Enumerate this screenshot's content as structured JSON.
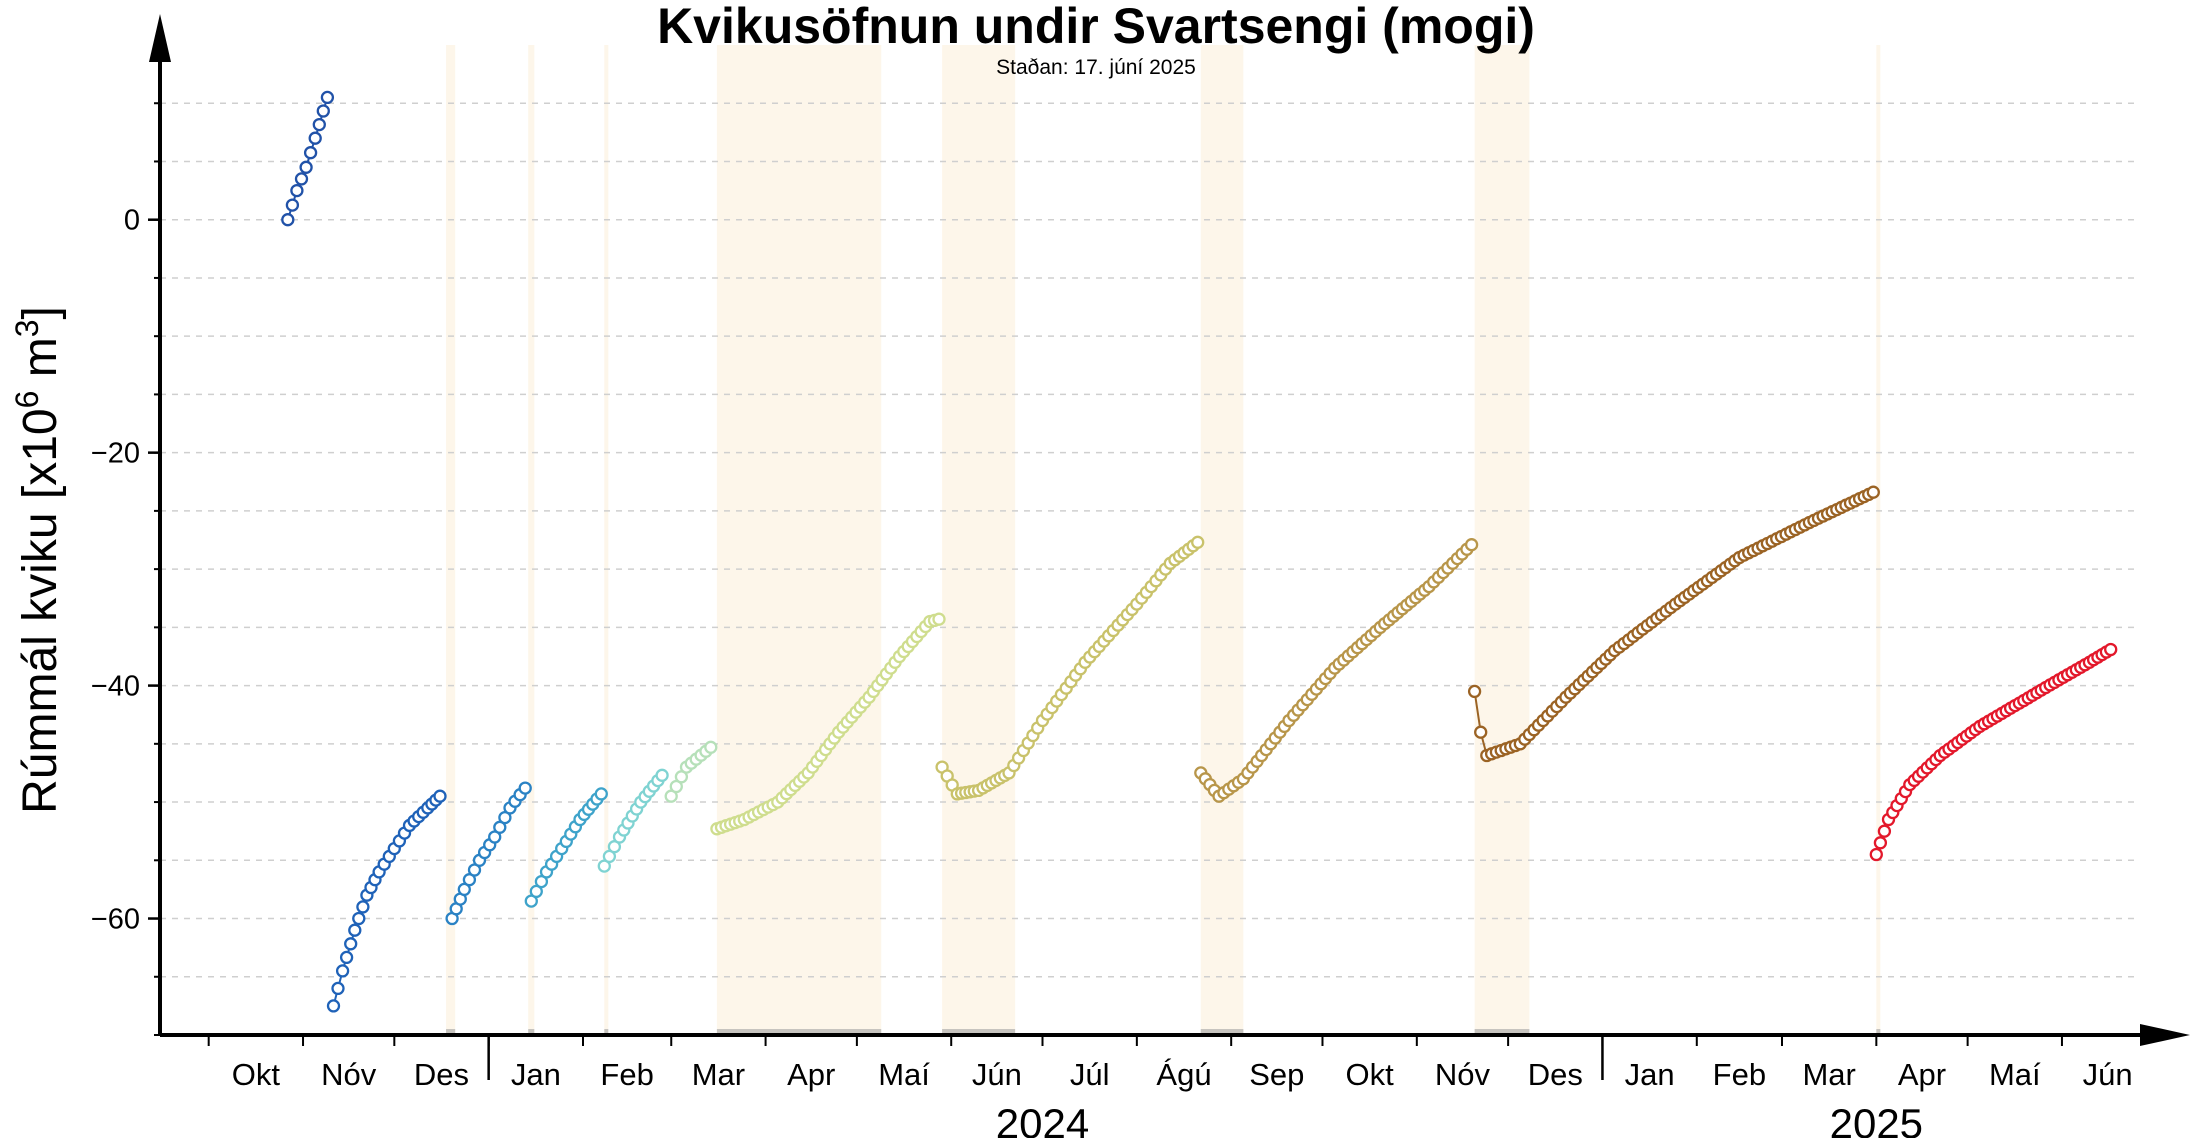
{
  "chart_data": {
    "type": "scatter",
    "title": "Kvikusöfnun undir Svartsengi (mogi)",
    "subtitle": "Staðan: 17. júní 2025",
    "ylabel": {
      "main": "Rúmmál kviku [x10",
      "exp1": "6",
      "mid": " m",
      "exp2": "3",
      "end": "]"
    },
    "ylim": [
      -70,
      15
    ],
    "yticks": [
      0,
      -20,
      -40,
      -60
    ],
    "ytick_labels": [
      "0",
      "−20",
      "−40",
      "−60"
    ],
    "xlim": [
      "2023-09-15",
      "2025-06-25"
    ],
    "month_labels": [
      {
        "label": "Okt",
        "date": "2023-10-01"
      },
      {
        "label": "Nóv",
        "date": "2023-11-01"
      },
      {
        "label": "Des",
        "date": "2023-12-01"
      },
      {
        "label": "Jan",
        "date": "2024-01-01"
      },
      {
        "label": "Feb",
        "date": "2024-02-01"
      },
      {
        "label": "Mar",
        "date": "2024-03-01"
      },
      {
        "label": "Apr",
        "date": "2024-04-01"
      },
      {
        "label": "Maí",
        "date": "2024-05-01"
      },
      {
        "label": "Jún",
        "date": "2024-06-01"
      },
      {
        "label": "Júl",
        "date": "2024-07-01"
      },
      {
        "label": "Ágú",
        "date": "2024-08-01"
      },
      {
        "label": "Sep",
        "date": "2024-09-01"
      },
      {
        "label": "Okt",
        "date": "2024-10-01"
      },
      {
        "label": "Nóv",
        "date": "2024-11-01"
      },
      {
        "label": "Des",
        "date": "2024-12-01"
      },
      {
        "label": "Jan",
        "date": "2025-01-01"
      },
      {
        "label": "Feb",
        "date": "2025-02-01"
      },
      {
        "label": "Mar",
        "date": "2025-03-01"
      },
      {
        "label": "Apr",
        "date": "2025-04-01"
      },
      {
        "label": "Maí",
        "date": "2025-05-01"
      },
      {
        "label": "Jún",
        "date": "2025-06-01"
      }
    ],
    "year_labels": [
      {
        "label": "2024",
        "date": "2024-07-01"
      },
      {
        "label": "2025",
        "date": "2025-04-01"
      }
    ],
    "year_dividers": [
      "2024-01-01",
      "2025-01-01"
    ],
    "eruption_bands": [
      {
        "start": "2023-12-18",
        "end": "2023-12-21"
      },
      {
        "start": "2024-01-14",
        "end": "2024-01-16"
      },
      {
        "start": "2024-02-08",
        "end": "2024-02-09"
      },
      {
        "start": "2024-03-16",
        "end": "2024-05-09"
      },
      {
        "start": "2024-05-29",
        "end": "2024-06-22"
      },
      {
        "start": "2024-08-22",
        "end": "2024-09-05"
      },
      {
        "start": "2024-11-20",
        "end": "2024-12-08"
      },
      {
        "start": "2025-04-01",
        "end": "2025-04-01"
      }
    ],
    "grid": true,
    "series": [
      {
        "color": "#2152a8",
        "points": [
          [
            "2023-10-27",
            0
          ],
          [
            "2023-10-30",
            2.5
          ],
          [
            "2023-11-02",
            4.5
          ],
          [
            "2023-11-05",
            7
          ],
          [
            "2023-11-09",
            10.5
          ]
        ]
      },
      {
        "color": "#1f62b8",
        "points": [
          [
            "2023-11-11",
            -67.5
          ],
          [
            "2023-11-14",
            -64.5
          ],
          [
            "2023-11-18",
            -61
          ],
          [
            "2023-11-22",
            -58
          ],
          [
            "2023-11-26",
            -56
          ],
          [
            "2023-12-01",
            -54
          ],
          [
            "2023-12-06",
            -52
          ],
          [
            "2023-12-12",
            -50.5
          ],
          [
            "2023-12-16",
            -49.5
          ]
        ]
      },
      {
        "color": "#2a82c4",
        "points": [
          [
            "2023-12-20",
            -60
          ],
          [
            "2023-12-24",
            -57.5
          ],
          [
            "2023-12-29",
            -55
          ],
          [
            "2024-01-03",
            -53
          ],
          [
            "2024-01-08",
            -50.5
          ],
          [
            "2024-01-13",
            -48.8
          ]
        ]
      },
      {
        "color": "#3ea3ca",
        "points": [
          [
            "2024-01-15",
            -58.5
          ],
          [
            "2024-01-20",
            -56
          ],
          [
            "2024-01-25",
            -54
          ],
          [
            "2024-01-31",
            -51.5
          ],
          [
            "2024-02-07",
            -49.3
          ]
        ]
      },
      {
        "color": "#7fd3d2",
        "points": [
          [
            "2024-02-08",
            -55.5
          ],
          [
            "2024-02-13",
            -53
          ],
          [
            "2024-02-20",
            -50
          ],
          [
            "2024-02-27",
            -47.7
          ]
        ]
      },
      {
        "color": "#b6e0b9",
        "points": [
          [
            "2024-03-01",
            -49.5
          ],
          [
            "2024-03-06",
            -47
          ],
          [
            "2024-03-14",
            -45.3
          ]
        ]
      },
      {
        "color": "#cfdd8e",
        "points": [
          [
            "2024-03-16",
            -52.3
          ],
          [
            "2024-03-25",
            -51.5
          ],
          [
            "2024-04-05",
            -50
          ],
          [
            "2024-04-15",
            -47.5
          ],
          [
            "2024-04-25",
            -44
          ],
          [
            "2024-05-05",
            -41
          ],
          [
            "2024-05-15",
            -37.5
          ],
          [
            "2024-05-25",
            -34.5
          ],
          [
            "2024-05-28",
            -34.3
          ]
        ]
      },
      {
        "color": "#c9c26b",
        "points": [
          [
            "2024-05-29",
            -47
          ],
          [
            "2024-06-03",
            -49.3
          ],
          [
            "2024-06-10",
            -49
          ],
          [
            "2024-06-20",
            -47.5
          ],
          [
            "2024-07-01",
            -43
          ],
          [
            "2024-07-15",
            -38
          ],
          [
            "2024-08-01",
            -33
          ],
          [
            "2024-08-12",
            -29.5
          ],
          [
            "2024-08-21",
            -27.7
          ]
        ]
      },
      {
        "color": "#b8964a",
        "points": [
          [
            "2024-08-22",
            -47.5
          ],
          [
            "2024-08-28",
            -49.5
          ],
          [
            "2024-09-05",
            -48
          ],
          [
            "2024-09-20",
            -43
          ],
          [
            "2024-10-05",
            -38.5
          ],
          [
            "2024-10-20",
            -35
          ],
          [
            "2024-11-05",
            -31.5
          ],
          [
            "2024-11-19",
            -27.9
          ]
        ]
      },
      {
        "color": "#9b6324",
        "points": [
          [
            "2024-11-20",
            -40.5
          ],
          [
            "2024-11-22",
            -44
          ],
          [
            "2024-11-24",
            -46
          ],
          [
            "2024-12-05",
            -45
          ],
          [
            "2024-12-20",
            -41
          ],
          [
            "2025-01-05",
            -37
          ],
          [
            "2025-01-25",
            -33
          ],
          [
            "2025-02-15",
            -29
          ],
          [
            "2025-03-10",
            -26
          ],
          [
            "2025-03-31",
            -23.4
          ]
        ]
      },
      {
        "color": "#e3182b",
        "points": [
          [
            "2025-04-01",
            -54.5
          ],
          [
            "2025-04-05",
            -51.5
          ],
          [
            "2025-04-12",
            -48.5
          ],
          [
            "2025-04-22",
            -46
          ],
          [
            "2025-05-05",
            -43.5
          ],
          [
            "2025-05-18",
            -41.5
          ],
          [
            "2025-05-31",
            -39.5
          ],
          [
            "2025-06-10",
            -38
          ],
          [
            "2025-06-17",
            -36.9
          ]
        ]
      }
    ]
  }
}
